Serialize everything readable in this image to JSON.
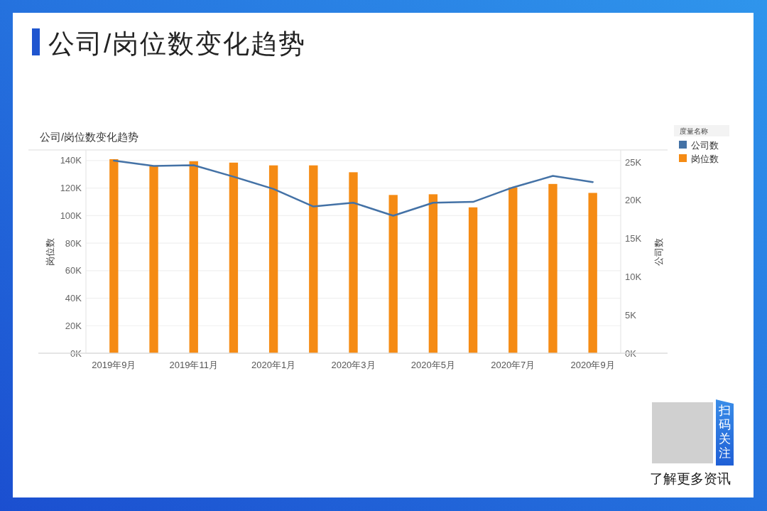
{
  "chart_data": {
    "type": "bar",
    "title": "公司/岗位数变化趋势",
    "subtitle": "公司/岗位数变化趋势",
    "ylabel": "岗位数",
    "y2label": "公司数",
    "legend_title": "度量名称",
    "annotations": [
      "扫码关注",
      "了解更多资讯"
    ],
    "categories": [
      "2019年9月",
      null,
      "2019年11月",
      null,
      "2020年1月",
      null,
      "2020年3月",
      null,
      "2020年5月",
      null,
      "2020年7月",
      null,
      "2020年9月"
    ],
    "series": [
      {
        "name": "公司数",
        "type": "line",
        "axis": "y2",
        "color": "#4472a6",
        "values": [
          25200,
          24500,
          24600,
          23100,
          21500,
          19200,
          19700,
          18000,
          19700,
          19800,
          21700,
          23200,
          22400
        ]
      },
      {
        "name": "岗位数",
        "color": "#f58b14",
        "values": [
          141000,
          136000,
          139500,
          138500,
          136500,
          136500,
          131500,
          115000,
          115500,
          106000,
          120500,
          123000,
          116500
        ]
      }
    ],
    "ylim": [
      0,
      147700
    ],
    "yticks": [
      {
        "value": 0,
        "label": "0K"
      },
      {
        "value": 20000,
        "label": "20K"
      },
      {
        "value": 40000,
        "label": "40K"
      },
      {
        "value": 60000,
        "label": "60K"
      },
      {
        "value": 80000,
        "label": "80K"
      },
      {
        "value": 100000,
        "label": "100K"
      },
      {
        "value": 120000,
        "label": "120K"
      },
      {
        "value": 140000,
        "label": "140K"
      }
    ],
    "y2lim": [
      0,
      26600
    ],
    "y2ticks": [
      {
        "value": 0,
        "label": "0K"
      },
      {
        "value": 5000,
        "label": "5K"
      },
      {
        "value": 10000,
        "label": "10K"
      },
      {
        "value": 15000,
        "label": "15K"
      },
      {
        "value": 20000,
        "label": "20K"
      },
      {
        "value": 25000,
        "label": "25K"
      }
    ],
    "grid": "y",
    "legend": "right",
    "marker": "none",
    "line_style": "solid"
  }
}
